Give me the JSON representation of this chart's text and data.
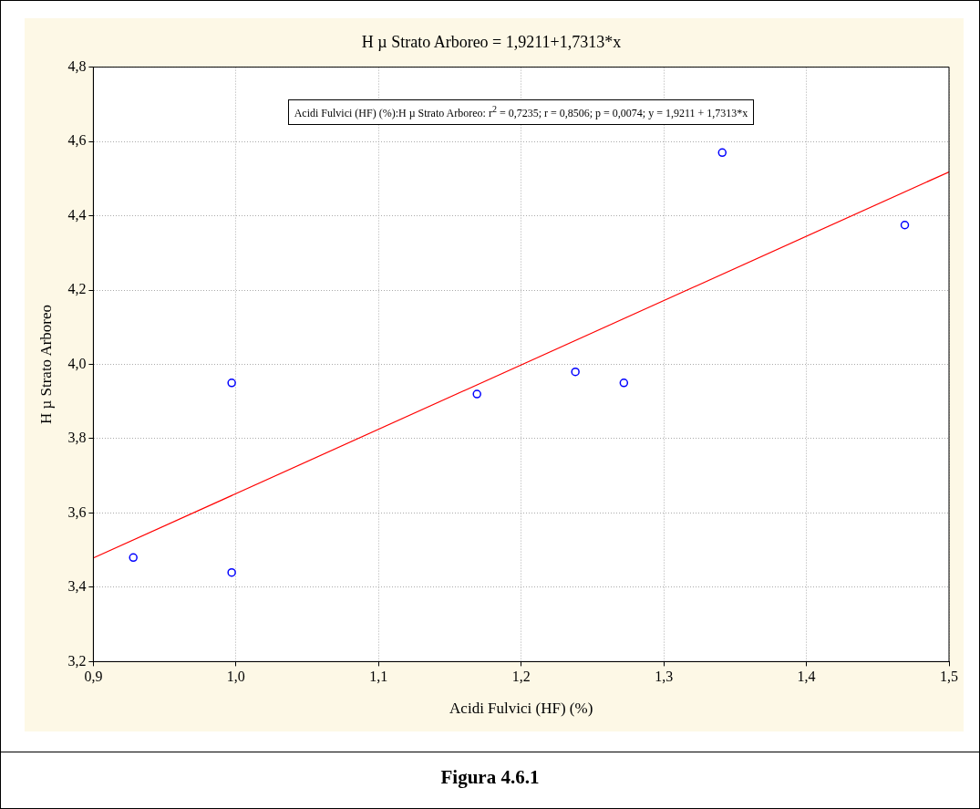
{
  "chart_data": {
    "type": "scatter",
    "title": "H µ Strato Arboreo = 1,9211+1,7313*x",
    "xlabel": "Acidi Fulvici (HF) (%)",
    "ylabel": "H µ Strato Arboreo",
    "annotations": [
      "Acidi Fulvici (HF) (%):H µ Strato Arboreo:  r$^{2}$ = 0,7235;  r = 0,8506; p = 0,0074;  y = 1,9211 + 1,7313*x",
      "Figura 4.6.1"
    ],
    "series": [
      {
        "color": "#0000ff",
        "x": [
          0.928,
          0.997,
          0.997,
          1.169,
          1.238,
          1.272,
          1.341,
          1.469
        ],
        "values": [
          3.48,
          3.95,
          3.44,
          3.92,
          3.98,
          3.95,
          4.57,
          4.375
        ]
      },
      {
        "type": "line",
        "color": "#ff0000",
        "marker": "none",
        "x": [
          0.9,
          1.5
        ],
        "values": [
          3.479,
          4.518
        ]
      }
    ],
    "xlim": [
      0.9,
      1.5
    ],
    "ylim": [
      3.2,
      4.8
    ],
    "xticks": [
      {
        "value": 0.9,
        "label": "0,9"
      },
      {
        "value": 1.0,
        "label": "1,0"
      },
      {
        "value": 1.1,
        "label": "1,1"
      },
      {
        "value": 1.2,
        "label": "1,2"
      },
      {
        "value": 1.3,
        "label": "1,3"
      },
      {
        "value": 1.4,
        "label": "1,4"
      },
      {
        "value": 1.5,
        "label": "1,5"
      }
    ],
    "yticks": [
      {
        "value": 3.2,
        "label": "3,2"
      },
      {
        "value": 3.4,
        "label": "3,4"
      },
      {
        "value": 3.6,
        "label": "3,6"
      },
      {
        "value": 3.8,
        "label": "3,8"
      },
      {
        "value": 4.0,
        "label": "4,0"
      },
      {
        "value": 4.2,
        "label": "4,2"
      },
      {
        "value": 4.4,
        "label": "4,4"
      },
      {
        "value": 4.6,
        "label": "4,6"
      },
      {
        "value": 4.8,
        "label": "4,8"
      }
    ],
    "grid": true,
    "legend": false,
    "marker": "circle"
  }
}
